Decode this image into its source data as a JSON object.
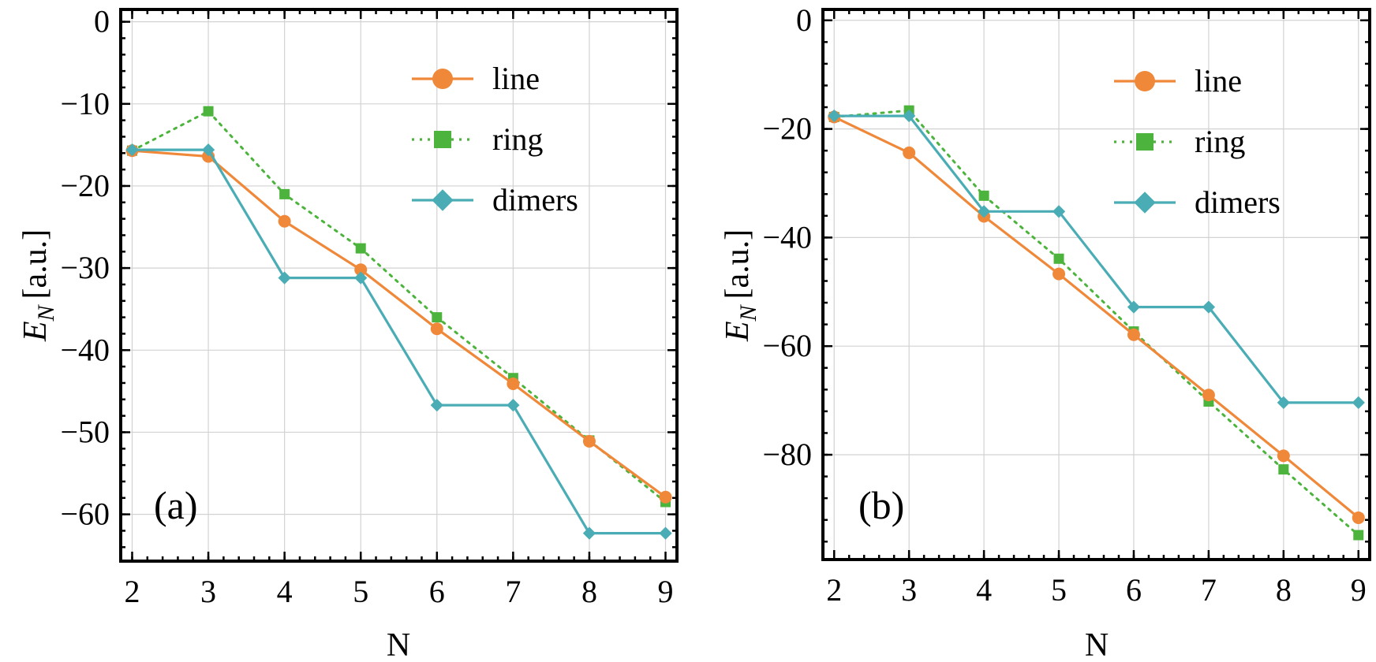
{
  "colors": {
    "line": "#f0883a",
    "ring": "#4cb43c",
    "dimers": "#4aadb5",
    "grid": "#d2d2d2",
    "frame": "#000000"
  },
  "chart_data": [
    {
      "type": "line",
      "panel_label": "(a)",
      "xlabel": "N",
      "ylabel_main": "E",
      "ylabel_sub": "N",
      "ylabel_unit": "[a.u.]",
      "x": [
        2,
        3,
        4,
        5,
        6,
        7,
        8,
        9
      ],
      "xlim": [
        1.85,
        9.15
      ],
      "ylim": [
        -65.7,
        1.5
      ],
      "xticks": [
        2,
        3,
        4,
        5,
        6,
        7,
        8,
        9
      ],
      "xtick_labels": [
        "2",
        "3",
        "4",
        "5",
        "6",
        "7",
        "8",
        "9"
      ],
      "yticks": [
        0,
        -10,
        -20,
        -30,
        -40,
        -50,
        -60
      ],
      "ytick_labels": [
        "0",
        "−10",
        "−20",
        "−30",
        "−40",
        "−50",
        "−60"
      ],
      "legend": {
        "position": "top-right",
        "entries": [
          "line",
          "ring",
          "dimers"
        ]
      },
      "series": [
        {
          "name": "line",
          "marker": "circle",
          "dash": "solid",
          "values": [
            -15.7,
            -16.4,
            -24.3,
            -30.2,
            -37.4,
            -44.1,
            -51.1,
            -57.9
          ]
        },
        {
          "name": "ring",
          "marker": "square",
          "dash": "dotted",
          "values": [
            -15.7,
            -10.9,
            -21.0,
            -27.6,
            -36.0,
            -43.4,
            -51.0,
            -58.5
          ]
        },
        {
          "name": "dimers",
          "marker": "diamond",
          "dash": "solid",
          "values": [
            -15.6,
            -15.6,
            -31.2,
            -31.2,
            -46.7,
            -46.7,
            -62.3,
            -62.3
          ]
        }
      ]
    },
    {
      "type": "line",
      "panel_label": "(b)",
      "xlabel": "N",
      "ylabel_main": "E",
      "ylabel_sub": "N",
      "ylabel_unit": "[a.u.]",
      "x": [
        2,
        3,
        4,
        5,
        6,
        7,
        8,
        9
      ],
      "xlim": [
        1.85,
        9.15
      ],
      "ylim": [
        -99.3,
        2.0
      ],
      "xticks": [
        2,
        3,
        4,
        5,
        6,
        7,
        8,
        9
      ],
      "xtick_labels": [
        "2",
        "3",
        "4",
        "5",
        "6",
        "7",
        "8",
        "9"
      ],
      "yticks": [
        0,
        -20,
        -40,
        -60,
        -80
      ],
      "ytick_labels": [
        "0",
        "−20",
        "−40",
        "−60",
        "−80"
      ],
      "legend": {
        "position": "top-right",
        "entries": [
          "line",
          "ring",
          "dimers"
        ]
      },
      "series": [
        {
          "name": "line",
          "marker": "circle",
          "dash": "solid",
          "values": [
            -17.8,
            -24.4,
            -36.1,
            -46.7,
            -57.9,
            -69.0,
            -80.2,
            -91.6
          ]
        },
        {
          "name": "ring",
          "marker": "square",
          "dash": "dotted",
          "values": [
            -17.8,
            -16.6,
            -32.3,
            -43.9,
            -57.3,
            -70.2,
            -82.7,
            -94.8
          ]
        },
        {
          "name": "dimers",
          "marker": "diamond",
          "dash": "solid",
          "values": [
            -17.6,
            -17.6,
            -35.2,
            -35.2,
            -52.8,
            -52.8,
            -70.4,
            -70.4
          ]
        }
      ]
    }
  ]
}
